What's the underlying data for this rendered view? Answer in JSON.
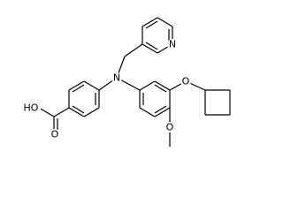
{
  "atoms": [
    "N",
    "N",
    "HO",
    "O",
    "O",
    "O"
  ]
}
